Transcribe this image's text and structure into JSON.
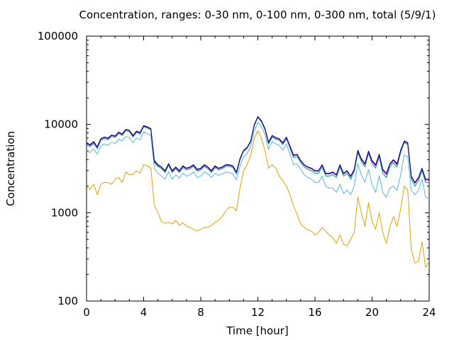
{
  "chart_data": {
    "type": "line",
    "title": "Concentration, ranges: 0-30 nm, 0-100 nm, 0-300 nm, total (5/9/1)",
    "xlabel": "Time [hour]",
    "ylabel": "Concentration",
    "xlim": [
      0,
      24
    ],
    "ylim": [
      100,
      100000
    ],
    "yscale": "log",
    "grid": false,
    "xticks": [
      "0",
      "4",
      "8",
      "12",
      "16",
      "20",
      "24"
    ],
    "yticks": [
      "100",
      "1000",
      "10000",
      "100000"
    ],
    "x": [
      0,
      0.25,
      0.5,
      0.75,
      1,
      1.25,
      1.5,
      1.75,
      2,
      2.25,
      2.5,
      2.75,
      3,
      3.25,
      3.5,
      3.75,
      4,
      4.25,
      4.5,
      4.75,
      5,
      5.25,
      5.5,
      5.75,
      6,
      6.25,
      6.5,
      6.75,
      7,
      7.25,
      7.5,
      7.75,
      8,
      8.25,
      8.5,
      8.75,
      9,
      9.25,
      9.5,
      9.75,
      10,
      10.25,
      10.5,
      10.75,
      11,
      11.25,
      11.5,
      11.75,
      12,
      12.25,
      12.5,
      12.75,
      13,
      13.25,
      13.5,
      13.75,
      14,
      14.25,
      14.5,
      14.75,
      15,
      15.25,
      15.5,
      15.75,
      16,
      16.25,
      16.5,
      16.75,
      17,
      17.25,
      17.5,
      17.75,
      18,
      18.25,
      18.5,
      18.75,
      19,
      19.25,
      19.5,
      19.75,
      20,
      20.25,
      20.5,
      20.75,
      21,
      21.25,
      21.5,
      21.75,
      22,
      22.25,
      22.5,
      22.75,
      23,
      23.25,
      23.5,
      23.75,
      24
    ],
    "series": [
      {
        "color": "#000080",
        "values": [
          6200,
          5900,
          6400,
          5600,
          6900,
          7200,
          7000,
          7600,
          7400,
          8200,
          7800,
          8800,
          8600,
          7500,
          8400,
          8100,
          9700,
          9400,
          9000,
          3900,
          3500,
          3300,
          3000,
          3600,
          3000,
          3300,
          3000,
          3400,
          3200,
          3300,
          3500,
          3100,
          3200,
          3500,
          3300,
          3000,
          3400,
          3200,
          3300,
          3500,
          3500,
          3400,
          2900,
          4100,
          5100,
          5500,
          6500,
          10000,
          12300,
          11000,
          9000,
          6300,
          7500,
          7100,
          6900,
          6200,
          7200,
          5700,
          4500,
          4600,
          3900,
          3500,
          3300,
          3200,
          3000,
          3000,
          3500,
          2800,
          2800,
          2900,
          2700,
          3500,
          2800,
          3000,
          2600,
          3100,
          5100,
          4100,
          3600,
          5000,
          3900,
          3500,
          4600,
          3100,
          2800,
          3600,
          4000,
          3600,
          5100,
          6500,
          6200,
          2600,
          2200,
          2500,
          3200,
          2400,
          2400
        ]
      },
      {
        "color": "#9400d3",
        "values": [
          6100,
          5800,
          6300,
          5500,
          6800,
          7100,
          6900,
          7500,
          7300,
          8100,
          7700,
          8700,
          8500,
          7400,
          8300,
          8000,
          9600,
          9300,
          8900,
          3800,
          3450,
          3250,
          2950,
          3550,
          2950,
          3250,
          2950,
          3350,
          3150,
          3250,
          3450,
          3050,
          3150,
          3450,
          3250,
          2950,
          3350,
          3150,
          3250,
          3450,
          3450,
          3350,
          2850,
          4050,
          5050,
          5450,
          6450,
          9900,
          12200,
          10900,
          8900,
          6200,
          7400,
          7000,
          6800,
          6100,
          7100,
          5600,
          4400,
          4500,
          3850,
          3450,
          3250,
          3150,
          2950,
          2950,
          3450,
          2750,
          2750,
          2850,
          2650,
          3450,
          2750,
          2950,
          2550,
          3050,
          5000,
          4000,
          3500,
          4900,
          3800,
          3400,
          4500,
          3000,
          2700,
          3500,
          3900,
          3500,
          5000,
          6400,
          6100,
          2550,
          2150,
          2450,
          3150,
          2350,
          2350
        ]
      },
      {
        "color": "#009e73",
        "values": [
          5900,
          5600,
          6100,
          5300,
          6600,
          6900,
          6700,
          7300,
          7100,
          7900,
          7500,
          8500,
          8300,
          7200,
          8100,
          7800,
          9400,
          9100,
          8700,
          3700,
          3350,
          3150,
          2850,
          3450,
          2850,
          3150,
          2850,
          3250,
          3050,
          3150,
          3350,
          2950,
          3050,
          3350,
          3150,
          2850,
          3250,
          3050,
          3150,
          3350,
          3350,
          3250,
          2750,
          3950,
          4950,
          5350,
          6350,
          9700,
          12000,
          10700,
          8700,
          6000,
          7200,
          6800,
          6600,
          5900,
          6900,
          5400,
          4200,
          4300,
          3700,
          3300,
          3100,
          3000,
          2800,
          2800,
          3300,
          2600,
          2600,
          2700,
          2500,
          3300,
          2600,
          2800,
          2400,
          2900,
          4800,
          3800,
          3300,
          4700,
          3600,
          3200,
          4300,
          2800,
          2500,
          3300,
          3700,
          3300,
          4800,
          6200,
          5900,
          2400,
          2000,
          2300,
          3000,
          2200,
          2200
        ]
      },
      {
        "color": "#56b4e9",
        "values": [
          5000,
          4800,
          5300,
          4600,
          5700,
          6000,
          5800,
          6300,
          6100,
          6800,
          6500,
          7300,
          7100,
          6200,
          7000,
          6700,
          8200,
          7900,
          7500,
          3200,
          2800,
          2600,
          2400,
          2900,
          2400,
          2700,
          2450,
          2800,
          2600,
          2700,
          2900,
          2500,
          2600,
          2900,
          2750,
          2500,
          2800,
          2650,
          2750,
          2900,
          2850,
          2750,
          2350,
          3400,
          4300,
          4700,
          5700,
          8500,
          10500,
          9500,
          7700,
          5200,
          6400,
          6000,
          5800,
          5100,
          6000,
          4600,
          3500,
          3600,
          3100,
          2700,
          2500,
          2400,
          2200,
          2200,
          2600,
          2000,
          1900,
          1900,
          1700,
          2100,
          1650,
          1800,
          1600,
          2000,
          3600,
          2700,
          2200,
          3100,
          2100,
          1700,
          2600,
          1700,
          1500,
          1900,
          2000,
          1800,
          2700,
          4500,
          4300,
          1800,
          1600,
          1800,
          2400,
          1500,
          1450
        ]
      },
      {
        "color": "#e69f00",
        "values": [
          1950,
          1850,
          2100,
          1600,
          2100,
          2200,
          2200,
          2100,
          2400,
          2500,
          2200,
          2900,
          2700,
          2700,
          3000,
          2800,
          3500,
          3400,
          3200,
          1200,
          1000,
          800,
          760,
          780,
          750,
          820,
          720,
          770,
          700,
          680,
          650,
          620,
          650,
          680,
          680,
          720,
          780,
          820,
          900,
          1050,
          1150,
          1150,
          1050,
          1900,
          3000,
          3500,
          4500,
          7000,
          8500,
          7000,
          5000,
          3200,
          3500,
          3200,
          2600,
          2300,
          2000,
          1600,
          1200,
          950,
          750,
          680,
          640,
          620,
          560,
          600,
          680,
          620,
          560,
          520,
          450,
          560,
          440,
          420,
          500,
          600,
          1500,
          1000,
          700,
          1300,
          800,
          650,
          1000,
          600,
          450,
          700,
          900,
          700,
          1100,
          2000,
          1800,
          380,
          270,
          280,
          470,
          240,
          280
        ]
      }
    ]
  }
}
